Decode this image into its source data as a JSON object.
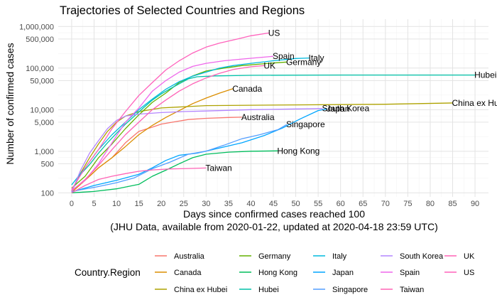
{
  "chart_data": {
    "type": "line",
    "title": "Trajectories of Selected Countries and Regions",
    "xlabel": "Days since confirmed cases reached 100",
    "xlabel_sub": "(JHU Data, available from 2020-01-22, updated at 2020-04-18 23:59 UTC)",
    "ylabel": "Number of confirmed cases",
    "y_scale": "log10",
    "xlim": [
      -3,
      93
    ],
    "ylim": [
      80,
      1500000
    ],
    "x_ticks": [
      0,
      5,
      10,
      15,
      20,
      25,
      30,
      35,
      40,
      45,
      50,
      55,
      60,
      65,
      70,
      75,
      80,
      85,
      90
    ],
    "x_tick_labels": [
      "0",
      "5",
      "10",
      "15",
      "20",
      "25",
      "30",
      "35",
      "40",
      "45",
      "50",
      "55",
      "60",
      "65",
      "70",
      "75",
      "80",
      "85",
      "90"
    ],
    "y_ticks": [
      100,
      500,
      1000,
      5000,
      10000,
      50000,
      100000,
      500000,
      1000000
    ],
    "y_tick_labels": [
      "100",
      "500",
      "1,000",
      "5,000",
      "10,000",
      "50,000",
      "100,000",
      "500,000",
      "1,000,000"
    ],
    "grid": true,
    "legend": {
      "title": "Country.Region",
      "position": "bottom",
      "columns": [
        [
          "Australia",
          "Canada",
          "China ex Hubei"
        ],
        [
          "Germany",
          "Hong Kong",
          "Hubei"
        ],
        [
          "Italy",
          "Japan",
          "Singapore"
        ],
        [
          "South Korea",
          "Spain",
          "Taiwan"
        ],
        [
          "UK",
          "US"
        ]
      ]
    },
    "series": [
      {
        "name": "Australia",
        "color": "#F8766D",
        "label": "Australia",
        "points": [
          [
            0,
            107
          ],
          [
            3,
            200
          ],
          [
            6,
            400
          ],
          [
            9,
            700
          ],
          [
            12,
            1600
          ],
          [
            15,
            3000
          ],
          [
            18,
            3800
          ],
          [
            20,
            4500
          ],
          [
            23,
            5100
          ],
          [
            26,
            5800
          ],
          [
            30,
            6200
          ],
          [
            35,
            6500
          ],
          [
            38,
            6600
          ]
        ]
      },
      {
        "name": "Canada",
        "color": "#DB8E00",
        "label": "Canada",
        "points": [
          [
            0,
            103
          ],
          [
            3,
            200
          ],
          [
            6,
            400
          ],
          [
            9,
            700
          ],
          [
            12,
            1300
          ],
          [
            15,
            2500
          ],
          [
            18,
            4200
          ],
          [
            21,
            6500
          ],
          [
            24,
            9500
          ],
          [
            27,
            14000
          ],
          [
            30,
            19000
          ],
          [
            33,
            25000
          ],
          [
            36,
            32000
          ]
        ]
      },
      {
        "name": "China ex Hubei",
        "color": "#AEA200",
        "label": "China ex Hubei",
        "points": [
          [
            0,
            110
          ],
          [
            2,
            300
          ],
          [
            4,
            700
          ],
          [
            6,
            1500
          ],
          [
            8,
            3000
          ],
          [
            10,
            5000
          ],
          [
            12,
            7000
          ],
          [
            15,
            9000
          ],
          [
            20,
            11000
          ],
          [
            30,
            12500
          ],
          [
            50,
            13000
          ],
          [
            70,
            13500
          ],
          [
            85,
            14500
          ]
        ]
      },
      {
        "name": "Germany",
        "color": "#64B200",
        "label": "Germany",
        "points": [
          [
            0,
            130
          ],
          [
            3,
            250
          ],
          [
            6,
            700
          ],
          [
            9,
            1500
          ],
          [
            12,
            3500
          ],
          [
            15,
            7500
          ],
          [
            18,
            15000
          ],
          [
            21,
            25000
          ],
          [
            24,
            45000
          ],
          [
            27,
            65000
          ],
          [
            30,
            85000
          ],
          [
            34,
            100000
          ],
          [
            38,
            115000
          ],
          [
            44,
            130000
          ],
          [
            48,
            140000
          ]
        ]
      },
      {
        "name": "Hong Kong",
        "color": "#00BD5C",
        "label": "Hong Kong",
        "points": [
          [
            0,
            100
          ],
          [
            5,
            108
          ],
          [
            10,
            125
          ],
          [
            15,
            160
          ],
          [
            18,
            250
          ],
          [
            21,
            350
          ],
          [
            24,
            500
          ],
          [
            27,
            700
          ],
          [
            30,
            850
          ],
          [
            35,
            950
          ],
          [
            40,
            1000
          ],
          [
            46,
            1020
          ]
        ]
      },
      {
        "name": "Hubei",
        "color": "#00C1A7",
        "label": "Hubei",
        "points": [
          [
            0,
            110
          ],
          [
            2,
            280
          ],
          [
            4,
            480
          ],
          [
            6,
            900
          ],
          [
            8,
            1600
          ],
          [
            10,
            2700
          ],
          [
            12,
            4500
          ],
          [
            14,
            7000
          ],
          [
            16,
            11000
          ],
          [
            18,
            17000
          ],
          [
            20,
            24000
          ],
          [
            22,
            32000
          ],
          [
            24,
            42000
          ],
          [
            26,
            55000
          ],
          [
            28,
            62000
          ],
          [
            32,
            65000
          ],
          [
            40,
            67000
          ],
          [
            60,
            68000
          ],
          [
            80,
            68000
          ],
          [
            90,
            68000
          ]
        ]
      },
      {
        "name": "Italy",
        "color": "#00BADE",
        "label": "Italy",
        "points": [
          [
            0,
            155
          ],
          [
            3,
            400
          ],
          [
            6,
            1100
          ],
          [
            9,
            2500
          ],
          [
            12,
            5000
          ],
          [
            15,
            10000
          ],
          [
            18,
            18000
          ],
          [
            21,
            31000
          ],
          [
            24,
            47000
          ],
          [
            27,
            64000
          ],
          [
            30,
            80000
          ],
          [
            33,
            100000
          ],
          [
            36,
            115000
          ],
          [
            40,
            130000
          ],
          [
            45,
            150000
          ],
          [
            50,
            170000
          ],
          [
            53,
            175000
          ]
        ]
      },
      {
        "name": "Japan",
        "color": "#00A6FF",
        "label": "Japan",
        "points": [
          [
            0,
            105
          ],
          [
            5,
            150
          ],
          [
            10,
            200
          ],
          [
            15,
            280
          ],
          [
            18,
            400
          ],
          [
            21,
            600
          ],
          [
            24,
            800
          ],
          [
            28,
            900
          ],
          [
            33,
            1200
          ],
          [
            38,
            1600
          ],
          [
            43,
            2400
          ],
          [
            47,
            3600
          ],
          [
            51,
            6000
          ],
          [
            55,
            9500
          ],
          [
            57,
            10500
          ]
        ]
      },
      {
        "name": "Singapore",
        "color": "#529EFF",
        "label": "Singapore",
        "points": [
          [
            0,
            108
          ],
          [
            5,
            135
          ],
          [
            10,
            175
          ],
          [
            14,
            230
          ],
          [
            18,
            380
          ],
          [
            22,
            550
          ],
          [
            26,
            850
          ],
          [
            30,
            1000
          ],
          [
            34,
            1400
          ],
          [
            38,
            2000
          ],
          [
            42,
            2500
          ],
          [
            46,
            3300
          ],
          [
            48,
            4400
          ]
        ]
      },
      {
        "name": "South Korea",
        "color": "#B385FF",
        "label": "South Korea",
        "points": [
          [
            0,
            104
          ],
          [
            2,
            350
          ],
          [
            4,
            900
          ],
          [
            6,
            1800
          ],
          [
            8,
            3500
          ],
          [
            10,
            5500
          ],
          [
            12,
            7000
          ],
          [
            15,
            7800
          ],
          [
            20,
            8500
          ],
          [
            25,
            9000
          ],
          [
            30,
            9300
          ],
          [
            40,
            10000
          ],
          [
            50,
            10400
          ],
          [
            56,
            10650
          ]
        ]
      },
      {
        "name": "Spain",
        "color": "#EF67EB",
        "label": "Spain",
        "points": [
          [
            0,
            114
          ],
          [
            3,
            200
          ],
          [
            6,
            500
          ],
          [
            9,
            1600
          ],
          [
            12,
            5000
          ],
          [
            15,
            11000
          ],
          [
            18,
            28000
          ],
          [
            21,
            50000
          ],
          [
            24,
            80000
          ],
          [
            27,
            110000
          ],
          [
            30,
            130000
          ],
          [
            34,
            150000
          ],
          [
            38,
            165000
          ],
          [
            42,
            180000
          ],
          [
            45,
            192000
          ]
        ]
      },
      {
        "name": "Taiwan",
        "color": "#FF63B6",
        "label": "Taiwan",
        "points": [
          [
            0,
            100
          ],
          [
            3,
            150
          ],
          [
            6,
            210
          ],
          [
            9,
            250
          ],
          [
            12,
            290
          ],
          [
            15,
            330
          ],
          [
            18,
            355
          ],
          [
            22,
            375
          ],
          [
            26,
            385
          ],
          [
            30,
            395
          ]
        ]
      },
      {
        "name": "UK",
        "color": "#FF63B6",
        "label": "UK",
        "points": [
          [
            0,
            110
          ],
          [
            3,
            210
          ],
          [
            6,
            460
          ],
          [
            9,
            1100
          ],
          [
            12,
            2500
          ],
          [
            15,
            5000
          ],
          [
            18,
            10000
          ],
          [
            21,
            17000
          ],
          [
            24,
            28000
          ],
          [
            27,
            42000
          ],
          [
            30,
            58000
          ],
          [
            33,
            75000
          ],
          [
            36,
            92000
          ],
          [
            40,
            108000
          ],
          [
            43,
            115000
          ]
        ]
      },
      {
        "name": "US",
        "color": "#FF62BC",
        "label": "US",
        "points": [
          [
            0,
            120
          ],
          [
            3,
            400
          ],
          [
            6,
            1100
          ],
          [
            9,
            3500
          ],
          [
            12,
            9000
          ],
          [
            15,
            22000
          ],
          [
            18,
            45000
          ],
          [
            21,
            90000
          ],
          [
            24,
            150000
          ],
          [
            27,
            230000
          ],
          [
            30,
            320000
          ],
          [
            33,
            400000
          ],
          [
            37,
            500000
          ],
          [
            40,
            600000
          ],
          [
            44,
            700000
          ]
        ]
      }
    ]
  }
}
